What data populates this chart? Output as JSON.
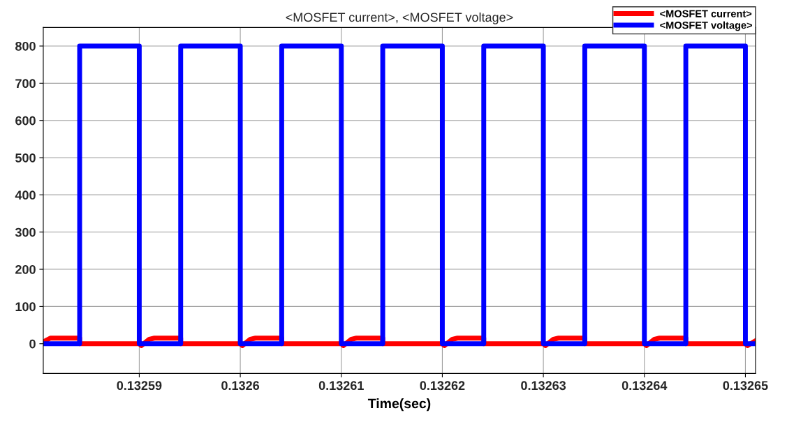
{
  "chart_data": {
    "type": "line",
    "title": "<MOSFET current>, <MOSFET voltage>",
    "xlabel": "Time(sec)",
    "series": [
      {
        "name": "<MOSFET current>",
        "color": "#ff0000",
        "x": [
          0.1325805,
          0.1325812,
          0.1325841,
          0.1325841,
          0.13259,
          0.1325902,
          0.132591,
          0.1325915,
          0.1325941,
          0.1325941,
          0.1326,
          0.1326002,
          0.132601,
          0.1326015,
          0.1326041,
          0.1326041,
          0.13261,
          0.1326102,
          0.132611,
          0.1326115,
          0.1326141,
          0.1326141,
          0.13262,
          0.1326202,
          0.132621,
          0.1326215,
          0.1326241,
          0.1326241,
          0.13263,
          0.1326302,
          0.132631,
          0.1326315,
          0.1326341,
          0.1326341,
          0.13264,
          0.1326402,
          0.132641,
          0.1326415,
          0.1326441,
          0.1326441,
          0.13265,
          0.1326502,
          0.132651
        ],
        "values": [
          5,
          15,
          15,
          0,
          0,
          -5,
          12,
          15,
          15,
          0,
          0,
          -5,
          12,
          15,
          15,
          0,
          0,
          -5,
          12,
          15,
          15,
          0,
          0,
          -5,
          12,
          15,
          15,
          0,
          0,
          -5,
          12,
          15,
          15,
          0,
          0,
          -5,
          12,
          15,
          15,
          0,
          0,
          -5,
          8
        ]
      },
      {
        "name": "<MOSFET voltage>",
        "color": "#0000ff",
        "x": [
          0.1325805,
          0.1325841,
          0.1325841,
          0.13259,
          0.13259,
          0.1325941,
          0.1325941,
          0.1326,
          0.1326,
          0.1326041,
          0.1326041,
          0.13261,
          0.13261,
          0.1326141,
          0.1326141,
          0.13262,
          0.13262,
          0.1326241,
          0.1326241,
          0.13263,
          0.13263,
          0.1326341,
          0.1326341,
          0.13264,
          0.13264,
          0.1326441,
          0.1326441,
          0.13265,
          0.13265,
          0.132651
        ],
        "values": [
          0,
          0,
          800,
          800,
          0,
          0,
          800,
          800,
          0,
          0,
          800,
          800,
          0,
          0,
          800,
          800,
          0,
          0,
          800,
          800,
          0,
          0,
          800,
          800,
          0,
          0,
          800,
          800,
          0,
          0
        ]
      }
    ],
    "xlim": [
      0.1325805,
      0.132651
    ],
    "xticks": [
      0.13259,
      0.1326,
      0.13261,
      0.13262,
      0.13263,
      0.13264,
      0.13265
    ],
    "ylim": [
      -80,
      850
    ],
    "yticks": [
      0,
      100,
      200,
      300,
      400,
      500,
      600,
      700,
      800
    ],
    "grid": true,
    "legend": "top right",
    "line_style": "solid",
    "marker": "none"
  }
}
